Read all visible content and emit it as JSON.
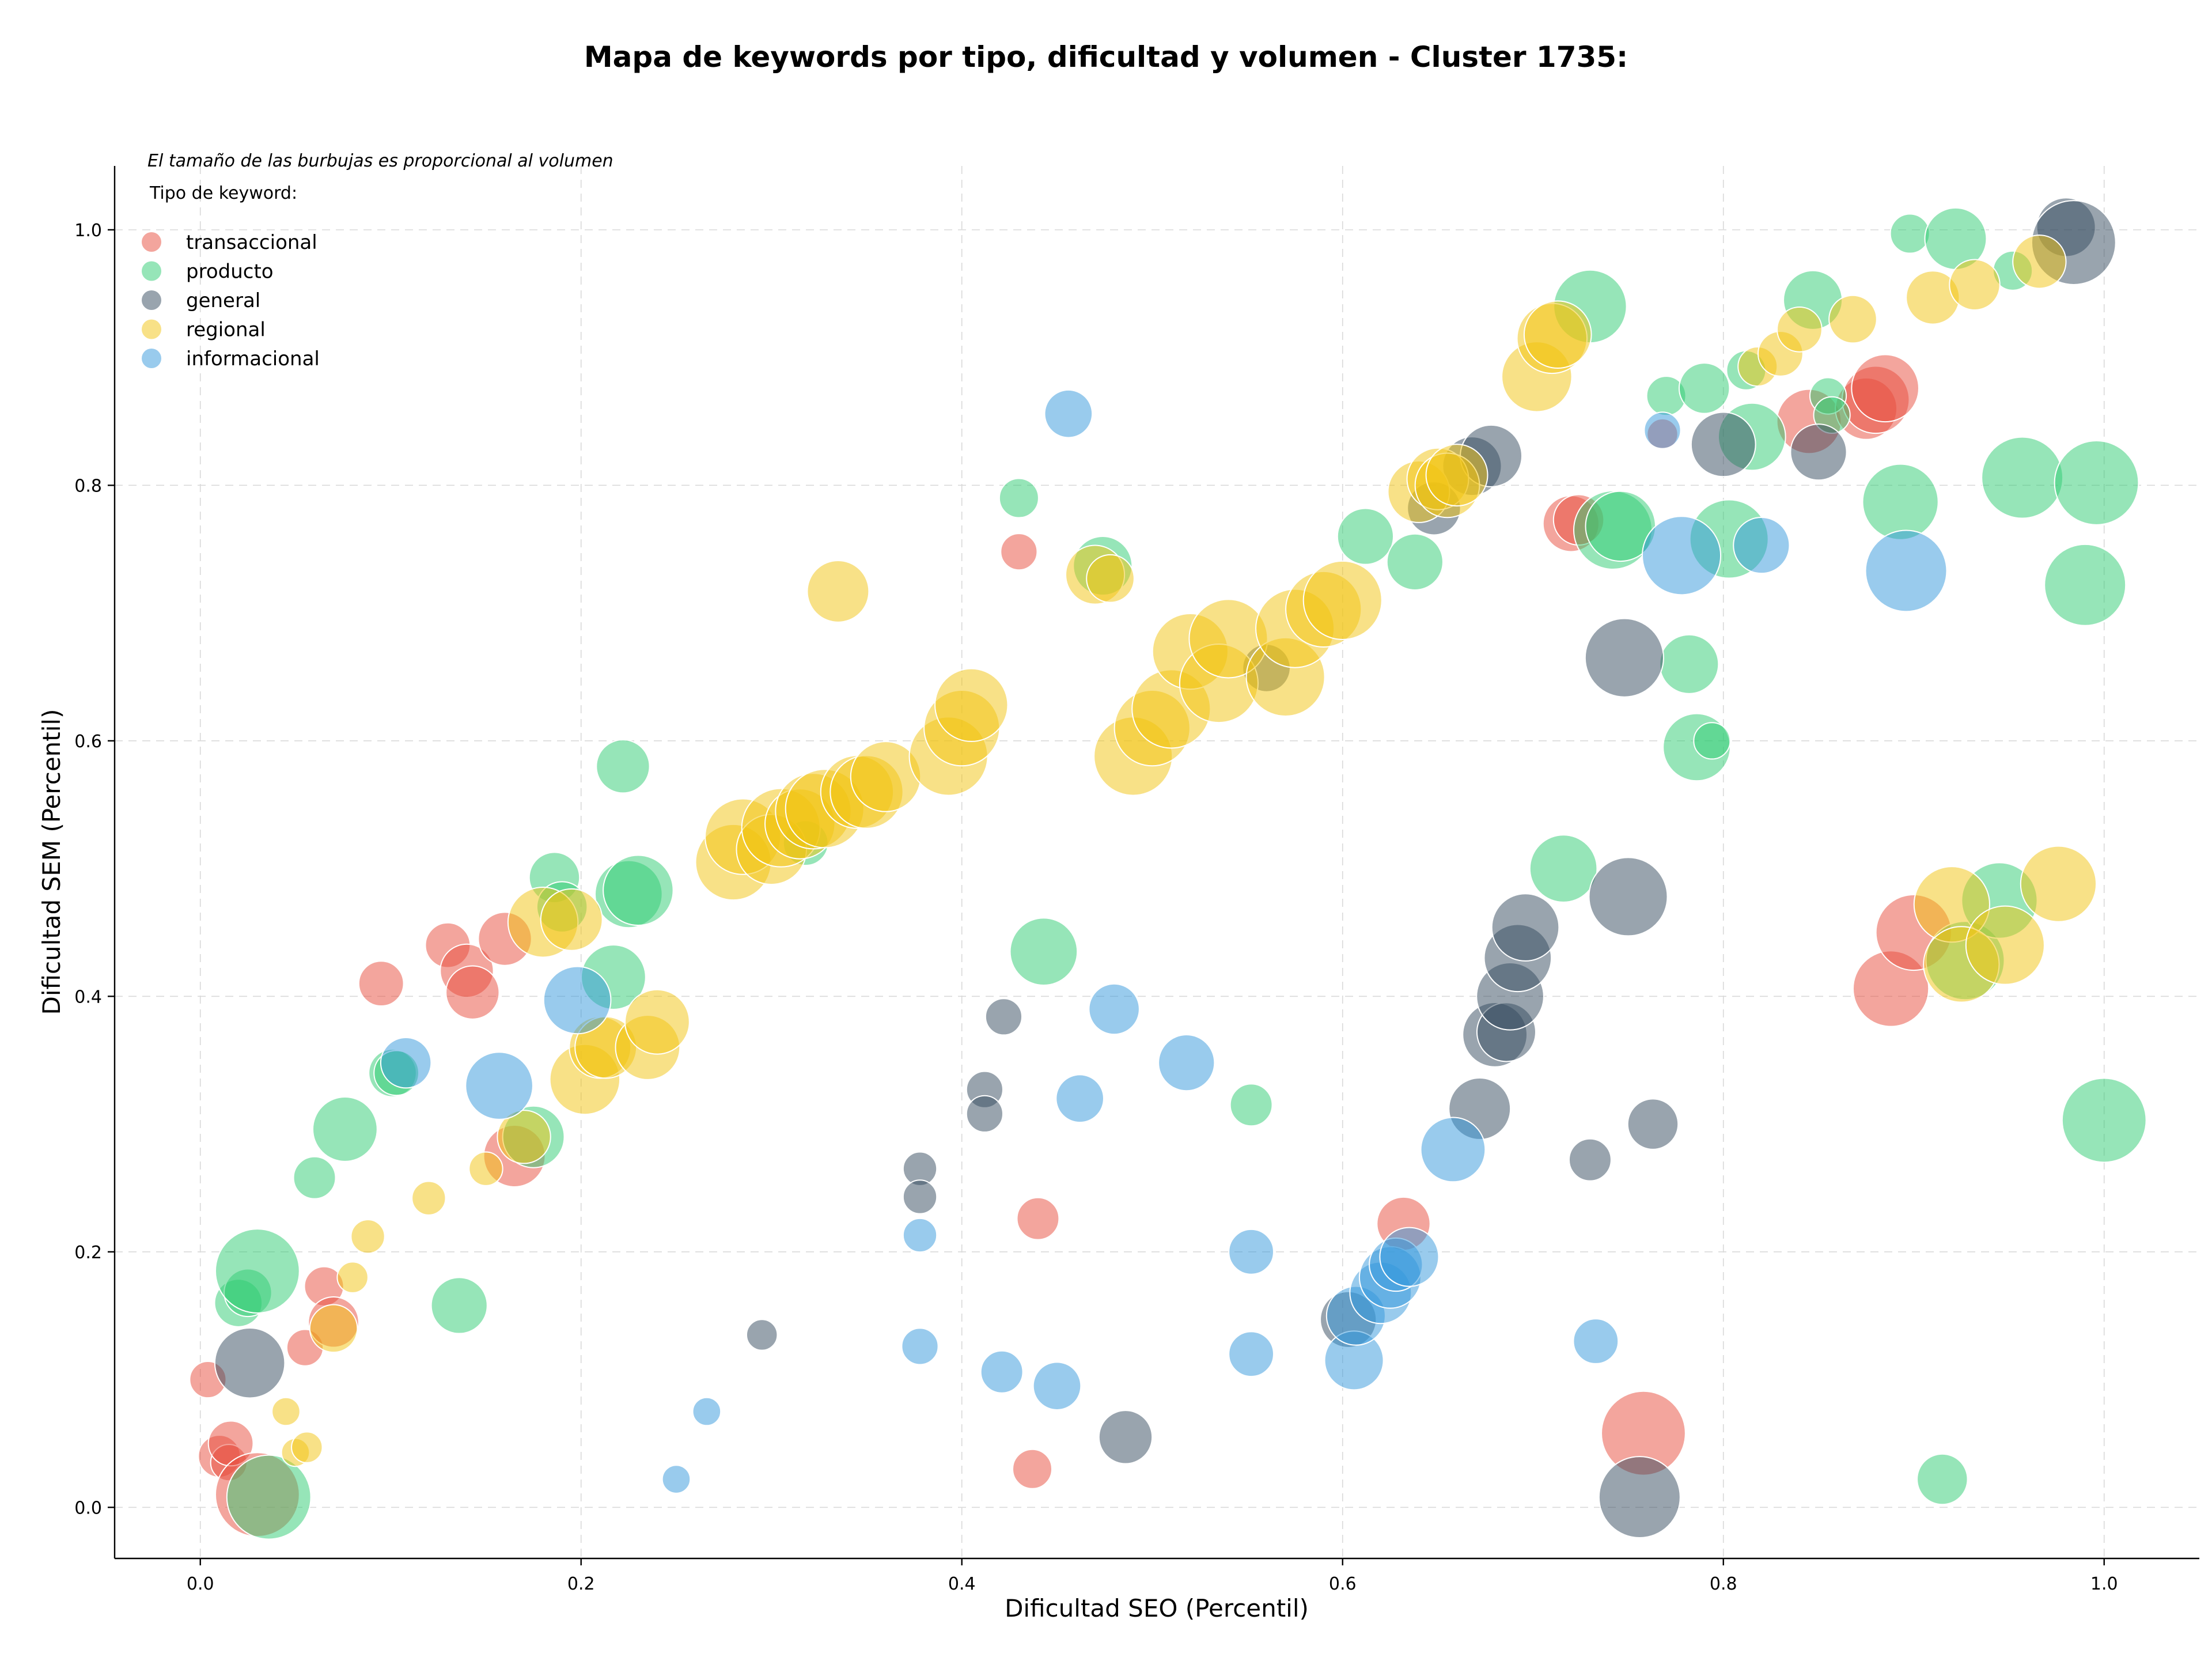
{
  "chart_data": {
    "type": "scatter",
    "title": "Mapa de keywords por tipo, dificultad y volumen - Cluster 1735:",
    "xlabel": "Dificultad SEO (Percentil)",
    "ylabel": "Dificultad SEM (Percentil)",
    "xlim": [
      -0.045,
      1.05
    ],
    "ylim": [
      -0.04,
      1.05
    ],
    "xticks": [
      "0.0",
      "0.2",
      "0.4",
      "0.6",
      "0.8",
      "1.0"
    ],
    "yticks": [
      "0.0",
      "0.2",
      "0.4",
      "0.6",
      "0.8",
      "1.0"
    ],
    "grid": true,
    "legend_placement": "top-left",
    "annotation": "El tamaño de las burbujas es proporcional al volumen",
    "legend_title": "Tipo de keyword:",
    "series": [
      {
        "name": "transaccional",
        "color": "#e74c3c",
        "points": [
          [
            0.004,
            0.1,
            13
          ],
          [
            0.01,
            0.04,
            15
          ],
          [
            0.015,
            0.035,
            13
          ],
          [
            0.016,
            0.05,
            16
          ],
          [
            0.03,
            0.01,
            30
          ],
          [
            0.055,
            0.125,
            13
          ],
          [
            0.065,
            0.173,
            14
          ],
          [
            0.07,
            0.145,
            18
          ],
          [
            0.095,
            0.41,
            16
          ],
          [
            0.13,
            0.44,
            16
          ],
          [
            0.14,
            0.42,
            19
          ],
          [
            0.143,
            0.403,
            19
          ],
          [
            0.16,
            0.445,
            19
          ],
          [
            0.165,
            0.275,
            22
          ],
          [
            0.43,
            0.748,
            13
          ],
          [
            0.437,
            0.03,
            14
          ],
          [
            0.44,
            0.226,
            15
          ],
          [
            0.632,
            0.222,
            19
          ],
          [
            0.72,
            0.77,
            20
          ],
          [
            0.724,
            0.773,
            18
          ],
          [
            0.758,
            0.058,
            30
          ],
          [
            0.768,
            0.84,
            11
          ],
          [
            0.845,
            0.85,
            23
          ],
          [
            0.875,
            0.86,
            22
          ],
          [
            0.88,
            0.867,
            24
          ],
          [
            0.885,
            0.876,
            24
          ],
          [
            0.888,
            0.406,
            27
          ],
          [
            0.9,
            0.45,
            27
          ]
        ]
      },
      {
        "name": "producto",
        "color": "#2ecc71",
        "points": [
          [
            0.02,
            0.16,
            17
          ],
          [
            0.025,
            0.168,
            17
          ],
          [
            0.03,
            0.185,
            30
          ],
          [
            0.036,
            0.008,
            30
          ],
          [
            0.06,
            0.258,
            15
          ],
          [
            0.076,
            0.296,
            23
          ],
          [
            0.101,
            0.34,
            17
          ],
          [
            0.103,
            0.34,
            16
          ],
          [
            0.136,
            0.158,
            20
          ],
          [
            0.175,
            0.29,
            22
          ],
          [
            0.186,
            0.493,
            18
          ],
          [
            0.19,
            0.47,
            18
          ],
          [
            0.217,
            0.415,
            23
          ],
          [
            0.222,
            0.58,
            19
          ],
          [
            0.225,
            0.48,
            24
          ],
          [
            0.23,
            0.483,
            25
          ],
          [
            0.318,
            0.52,
            16
          ],
          [
            0.43,
            0.79,
            14
          ],
          [
            0.443,
            0.435,
            24
          ],
          [
            0.474,
            0.737,
            21
          ],
          [
            0.552,
            0.315,
            15
          ],
          [
            0.612,
            0.76,
            20
          ],
          [
            0.638,
            0.74,
            20
          ],
          [
            0.716,
            0.5,
            24
          ],
          [
            0.73,
            0.94,
            26
          ],
          [
            0.742,
            0.765,
            28
          ],
          [
            0.746,
            0.768,
            25
          ],
          [
            0.77,
            0.87,
            14
          ],
          [
            0.782,
            0.66,
            21
          ],
          [
            0.786,
            0.595,
            24
          ],
          [
            0.79,
            0.876,
            18
          ],
          [
            0.794,
            0.6,
            13
          ],
          [
            0.803,
            0.758,
            28
          ],
          [
            0.812,
            0.89,
            14
          ],
          [
            0.815,
            0.838,
            24
          ],
          [
            0.847,
            0.945,
            21
          ],
          [
            0.855,
            0.87,
            13
          ],
          [
            0.857,
            0.855,
            13
          ],
          [
            0.893,
            0.787,
            27
          ],
          [
            0.898,
            0.997,
            14
          ],
          [
            0.915,
            0.022,
            18
          ],
          [
            0.922,
            0.993,
            22
          ],
          [
            0.927,
            0.428,
            28
          ],
          [
            0.945,
            0.475,
            27
          ],
          [
            0.952,
            0.968,
            14
          ],
          [
            0.957,
            0.806,
            29
          ],
          [
            0.99,
            0.722,
            29
          ],
          [
            0.996,
            0.802,
            30
          ],
          [
            1.0,
            0.303,
            30
          ]
        ]
      },
      {
        "name": "general",
        "color": "#34495e",
        "points": [
          [
            0.026,
            0.113,
            25
          ],
          [
            0.295,
            0.135,
            11
          ],
          [
            0.378,
            0.265,
            12
          ],
          [
            0.378,
            0.243,
            12
          ],
          [
            0.412,
            0.327,
            13
          ],
          [
            0.412,
            0.308,
            13
          ],
          [
            0.422,
            0.384,
            13
          ],
          [
            0.486,
            0.055,
            19
          ],
          [
            0.56,
            0.657,
            17
          ],
          [
            0.603,
            0.147,
            20
          ],
          [
            0.648,
            0.782,
            19
          ],
          [
            0.668,
            0.815,
            21
          ],
          [
            0.672,
            0.312,
            22
          ],
          [
            0.678,
            0.823,
            22
          ],
          [
            0.68,
            0.37,
            23
          ],
          [
            0.686,
            0.372,
            21
          ],
          [
            0.688,
            0.4,
            24
          ],
          [
            0.692,
            0.43,
            24
          ],
          [
            0.696,
            0.454,
            24
          ],
          [
            0.73,
            0.272,
            15
          ],
          [
            0.748,
            0.665,
            28
          ],
          [
            0.75,
            0.478,
            28
          ],
          [
            0.756,
            0.008,
            29
          ],
          [
            0.763,
            0.3,
            18
          ],
          [
            0.8,
            0.832,
            23
          ],
          [
            0.85,
            0.826,
            20
          ],
          [
            0.98,
            1.002,
            21
          ],
          [
            0.984,
            0.99,
            30
          ]
        ]
      },
      {
        "name": "regional",
        "color": "#f1c40f",
        "points": [
          [
            0.045,
            0.075,
            10
          ],
          [
            0.05,
            0.043,
            10
          ],
          [
            0.056,
            0.047,
            11
          ],
          [
            0.07,
            0.14,
            17
          ],
          [
            0.08,
            0.18,
            11
          ],
          [
            0.088,
            0.212,
            12
          ],
          [
            0.12,
            0.242,
            12
          ],
          [
            0.15,
            0.265,
            12
          ],
          [
            0.17,
            0.29,
            19
          ],
          [
            0.18,
            0.458,
            25
          ],
          [
            0.195,
            0.46,
            22
          ],
          [
            0.202,
            0.335,
            25
          ],
          [
            0.21,
            0.36,
            22
          ],
          [
            0.213,
            0.36,
            22
          ],
          [
            0.235,
            0.36,
            23
          ],
          [
            0.24,
            0.38,
            23
          ],
          [
            0.28,
            0.505,
            27
          ],
          [
            0.285,
            0.525,
            27
          ],
          [
            0.3,
            0.515,
            25
          ],
          [
            0.305,
            0.532,
            28
          ],
          [
            0.315,
            0.535,
            25
          ],
          [
            0.322,
            0.545,
            27
          ],
          [
            0.328,
            0.547,
            28
          ],
          [
            0.335,
            0.717,
            22
          ],
          [
            0.345,
            0.56,
            26
          ],
          [
            0.35,
            0.56,
            26
          ],
          [
            0.36,
            0.572,
            25
          ],
          [
            0.393,
            0.588,
            28
          ],
          [
            0.4,
            0.61,
            27
          ],
          [
            0.405,
            0.628,
            26
          ],
          [
            0.47,
            0.73,
            21
          ],
          [
            0.478,
            0.727,
            17
          ],
          [
            0.49,
            0.588,
            28
          ],
          [
            0.5,
            0.61,
            27
          ],
          [
            0.51,
            0.625,
            28
          ],
          [
            0.52,
            0.67,
            27
          ],
          [
            0.535,
            0.645,
            28
          ],
          [
            0.54,
            0.68,
            28
          ],
          [
            0.57,
            0.65,
            28
          ],
          [
            0.575,
            0.688,
            28
          ],
          [
            0.59,
            0.703,
            27
          ],
          [
            0.6,
            0.71,
            28
          ],
          [
            0.64,
            0.795,
            22
          ],
          [
            0.65,
            0.805,
            22
          ],
          [
            0.655,
            0.8,
            23
          ],
          [
            0.66,
            0.808,
            22
          ],
          [
            0.702,
            0.885,
            25
          ],
          [
            0.71,
            0.915,
            25
          ],
          [
            0.713,
            0.918,
            24
          ],
          [
            0.818,
            0.893,
            14
          ],
          [
            0.83,
            0.903,
            16
          ],
          [
            0.84,
            0.922,
            16
          ],
          [
            0.868,
            0.93,
            17
          ],
          [
            0.91,
            0.947,
            19
          ],
          [
            0.92,
            0.472,
            27
          ],
          [
            0.925,
            0.425,
            27
          ],
          [
            0.932,
            0.957,
            18
          ],
          [
            0.948,
            0.44,
            28
          ],
          [
            0.966,
            0.975,
            19
          ],
          [
            0.976,
            0.488,
            27
          ]
        ]
      },
      {
        "name": "informacional",
        "color": "#3498db",
        "points": [
          [
            0.108,
            0.348,
            18
          ],
          [
            0.157,
            0.33,
            24
          ],
          [
            0.198,
            0.397,
            24
          ],
          [
            0.25,
            0.022,
            10
          ],
          [
            0.266,
            0.075,
            10
          ],
          [
            0.378,
            0.213,
            12
          ],
          [
            0.378,
            0.126,
            13
          ],
          [
            0.421,
            0.106,
            15
          ],
          [
            0.45,
            0.095,
            17
          ],
          [
            0.456,
            0.856,
            17
          ],
          [
            0.462,
            0.32,
            17
          ],
          [
            0.48,
            0.39,
            18
          ],
          [
            0.518,
            0.348,
            20
          ],
          [
            0.552,
            0.2,
            16
          ],
          [
            0.552,
            0.12,
            16
          ],
          [
            0.606,
            0.115,
            21
          ],
          [
            0.607,
            0.15,
            21
          ],
          [
            0.62,
            0.168,
            22
          ],
          [
            0.625,
            0.18,
            22
          ],
          [
            0.628,
            0.19,
            19
          ],
          [
            0.635,
            0.196,
            21
          ],
          [
            0.658,
            0.28,
            23
          ],
          [
            0.733,
            0.13,
            16
          ],
          [
            0.768,
            0.843,
            13
          ],
          [
            0.778,
            0.745,
            28
          ],
          [
            0.82,
            0.753,
            20
          ],
          [
            0.896,
            0.733,
            29
          ]
        ]
      }
    ]
  }
}
